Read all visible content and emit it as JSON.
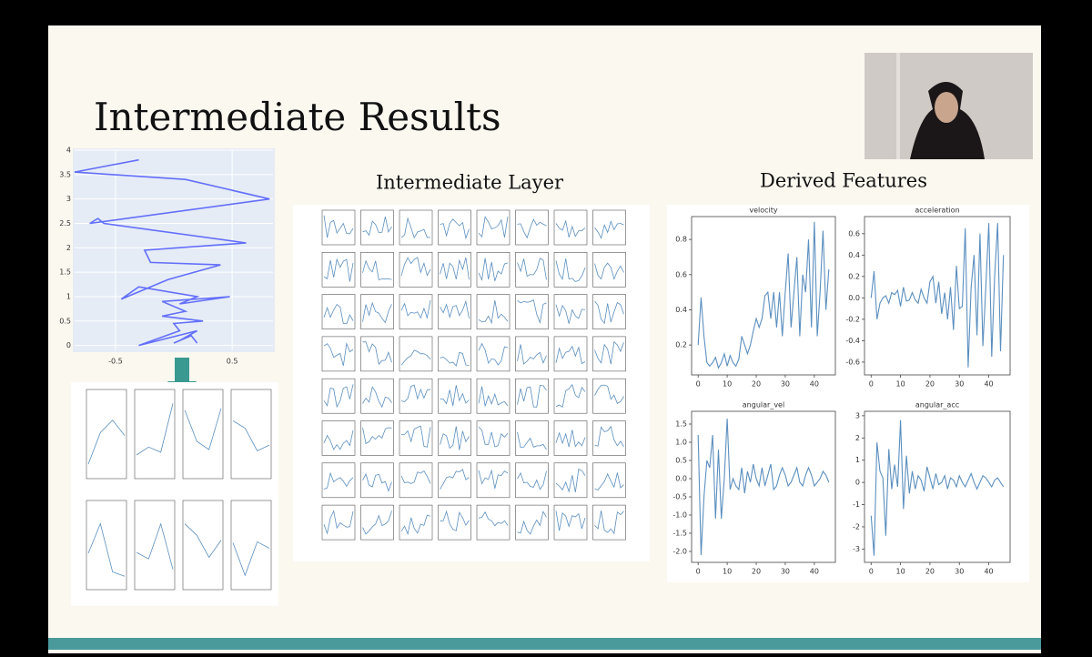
{
  "slide": {
    "title": "Intermediate Results",
    "layer_title": "Intermediate Layer",
    "features_title": "Derived Features"
  },
  "chart_data": [
    {
      "type": "line",
      "color": "#636efa",
      "x": [
        -0.3,
        -0.85,
        0.1,
        0.82,
        -0.72,
        -0.65,
        -0.6,
        0.62,
        -0.25,
        -0.2,
        0.4,
        -0.05,
        -0.45,
        -0.3,
        0.2,
        0.05,
        0.48,
        -0.1,
        0.1,
        -0.1,
        0.25,
        0.0,
        0.05,
        -0.3,
        0.2,
        0.05,
        0.0,
        0.15,
        0.2
      ],
      "values": [
        3.8,
        3.55,
        3.4,
        3.0,
        2.5,
        2.6,
        2.5,
        2.1,
        1.95,
        1.7,
        1.65,
        1.35,
        0.95,
        1.2,
        1.0,
        0.85,
        1.0,
        0.9,
        0.7,
        0.6,
        0.5,
        0.45,
        0.3,
        0.0,
        0.3,
        0.1,
        0.05,
        0.2,
        0.05
      ],
      "xlim": [
        -0.85,
        0.85
      ],
      "xticks": [
        -0.5,
        0.5
      ],
      "ylim": [
        -0.1,
        4
      ],
      "yticks": [
        0,
        0.5,
        1,
        1.5,
        2,
        2.5,
        3,
        3.5,
        4
      ],
      "grid": true
    },
    {
      "type": "line",
      "title": "velocity",
      "color": "#5b8fbf",
      "values": [
        0.2,
        0.47,
        0.25,
        0.1,
        0.08,
        0.1,
        0.13,
        0.07,
        0.1,
        0.15,
        0.08,
        0.14,
        0.1,
        0.08,
        0.12,
        0.25,
        0.2,
        0.15,
        0.2,
        0.28,
        0.35,
        0.3,
        0.35,
        0.48,
        0.5,
        0.35,
        0.5,
        0.3,
        0.5,
        0.25,
        0.5,
        0.72,
        0.3,
        0.5,
        0.7,
        0.25,
        0.6,
        0.5,
        0.8,
        0.3,
        0.9,
        0.25,
        0.5,
        0.85,
        0.4,
        0.63
      ],
      "xlim": [
        -2.25,
        47.25
      ],
      "xticks": [
        0,
        10,
        20,
        30,
        40
      ],
      "ylim": [
        0.03,
        0.93
      ],
      "yticks": [
        0.2,
        0.4,
        0.6,
        0.8
      ]
    },
    {
      "type": "line",
      "title": "acceleration",
      "color": "#5b8fbf",
      "values": [
        0,
        0.25,
        -0.2,
        -0.05,
        0,
        0.02,
        -0.05,
        0.05,
        0.03,
        0.07,
        -0.08,
        0.1,
        -0.03,
        -0.02,
        0.05,
        -0.02,
        -0.05,
        0.08,
        0,
        -0.05,
        0.15,
        0.2,
        -0.05,
        0.15,
        -0.15,
        0.05,
        -0.2,
        0.1,
        -0.3,
        0.3,
        -0.1,
        -0.08,
        0.65,
        -0.65,
        0.1,
        0.4,
        -0.35,
        0.6,
        -0.45,
        0.1,
        0.7,
        -0.55,
        0.2,
        0.7,
        -0.5,
        0.4
      ],
      "xlim": [
        -2.25,
        47.25
      ],
      "xticks": [
        0,
        10,
        20,
        30,
        40
      ],
      "ylim": [
        -0.72,
        0.76
      ],
      "yticks": [
        -0.6,
        -0.4,
        -0.2,
        {
          "value": 0,
          "label": "0.0"
        },
        0.2,
        0.4,
        0.6
      ]
    },
    {
      "type": "line",
      "title": "angular_vel",
      "color": "#5b8fbf",
      "values": [
        1.2,
        -2.1,
        -0.5,
        0.5,
        0.3,
        1.2,
        -1.1,
        0.8,
        -1.1,
        0,
        1.65,
        -0.3,
        0,
        -0.2,
        -0.3,
        0.3,
        -0.4,
        0.2,
        -0.1,
        0.4,
        0,
        -0.2,
        0.3,
        -0.2,
        0.1,
        0.4,
        -0.3,
        -0.2,
        0.1,
        0.3,
        0.1,
        -0.2,
        -0.1,
        0.1,
        0.3,
        -0.1,
        -0.2,
        0.1,
        0.3,
        0.1,
        -0.2,
        -0.1,
        0,
        0.2,
        0.1,
        -0.1
      ],
      "xlim": [
        -2.25,
        47.25
      ],
      "xticks": [
        0,
        10,
        20,
        30,
        40
      ],
      "ylim": [
        -2.3,
        1.85
      ],
      "yticks": [
        {
          "value": -2,
          "label": "-2.0"
        },
        -1.5,
        {
          "value": -1,
          "label": "-1.0"
        },
        -0.5,
        {
          "value": 0,
          "label": "0.0"
        },
        0.5,
        {
          "value": 1,
          "label": "1.0"
        },
        1.5
      ]
    },
    {
      "type": "line",
      "title": "angular_acc",
      "color": "#5b8fbf",
      "values": [
        -1.5,
        -3.3,
        1.8,
        0.5,
        0.2,
        -2.4,
        1.5,
        -0.3,
        0.8,
        -0.2,
        2.8,
        -1.2,
        1.2,
        -0.5,
        0.5,
        -0.3,
        0.3,
        0.1,
        -0.4,
        0.7,
        0.2,
        -0.3,
        0.4,
        -0.1,
        0,
        0.3,
        -0.3,
        0.2,
        0.1,
        -0.2,
        0.3,
        0,
        -0.2,
        0.1,
        0.4,
        0,
        -0.3,
        0,
        0.3,
        0.2,
        0,
        -0.2,
        0.1,
        0.2,
        0,
        -0.2
      ],
      "xlim": [
        -2.25,
        47.25
      ],
      "xticks": [
        0,
        10,
        20,
        30,
        40
      ],
      "ylim": [
        -3.6,
        3.2
      ],
      "yticks": [
        -3,
        -2,
        -1,
        0,
        1,
        2,
        3
      ]
    }
  ]
}
